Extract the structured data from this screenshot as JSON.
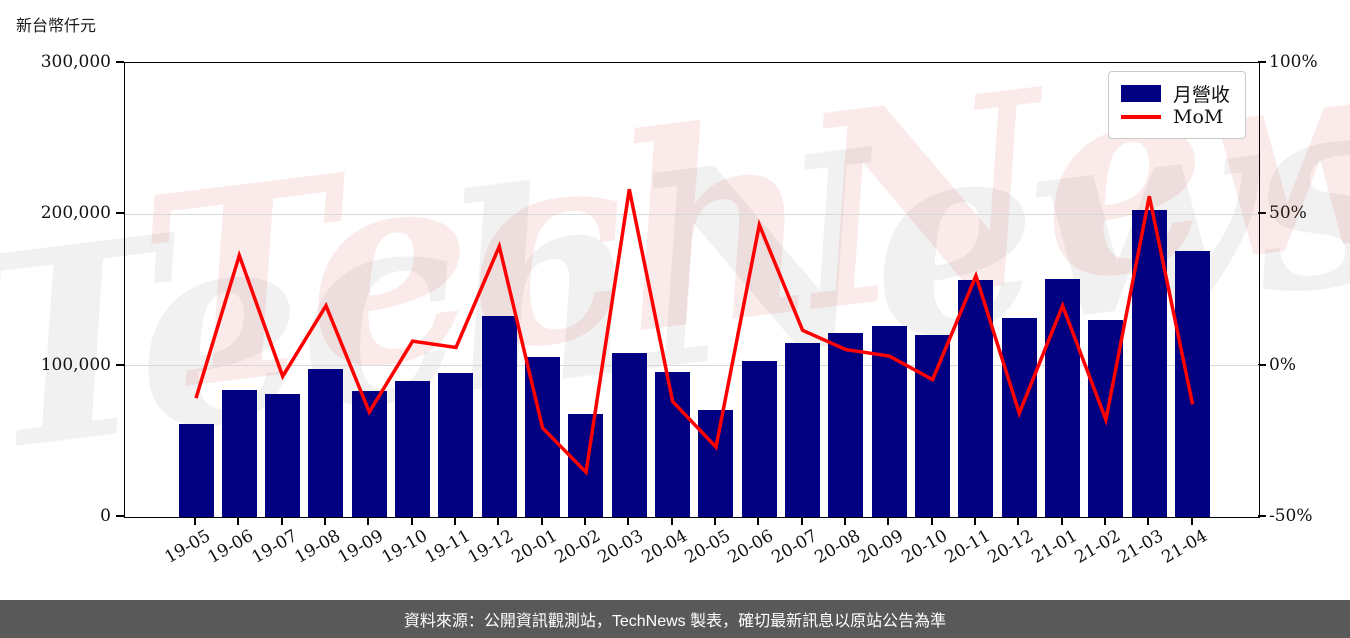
{
  "title_unit": "新台幣仟元",
  "watermark": "TechNews",
  "caption": "資料來源：公開資訊觀測站，TechNews 製表，確切最新訊息以原站公告為準",
  "legend": {
    "items": [
      {
        "label": "月營收",
        "type": "bar"
      },
      {
        "label": "MoM",
        "type": "line"
      }
    ]
  },
  "colors": {
    "bar": "#000080",
    "line": "#ff0000",
    "caption_bg": "#595959",
    "grid": "#d9d9d9",
    "axis": "#000000"
  },
  "axes": {
    "left": {
      "tick_labels": [
        "300,000",
        "200,000",
        "100,000",
        "0"
      ],
      "tick_values": [
        300000,
        200000,
        100000,
        0
      ]
    },
    "right": {
      "tick_labels": [
        "100%",
        "50%",
        "0%",
        "-50%"
      ],
      "tick_values": [
        100,
        50,
        0,
        -50
      ]
    }
  },
  "chart_data": {
    "type": "bar",
    "title": "",
    "ylabel_left": "新台幣仟元",
    "ylabel_right": "%",
    "left_axis_range": [
      0,
      300000
    ],
    "right_axis_range": [
      -50,
      100
    ],
    "gridline_values_left": [
      200000,
      100000
    ],
    "legend_position": "top-right",
    "categories": [
      "19-05",
      "19-06",
      "19-07",
      "19-08",
      "19-09",
      "19-10",
      "19-11",
      "19-12",
      "20-01",
      "20-02",
      "20-03",
      "20-04",
      "20-05",
      "20-06",
      "20-07",
      "20-08",
      "20-09",
      "20-10",
      "20-11",
      "20-12",
      "21-01",
      "21-02",
      "21-03",
      "21-04"
    ],
    "series": [
      {
        "name": "月營收",
        "type": "bar",
        "yaxis": "left",
        "unit": "新台幣仟元",
        "values": [
          61500,
          84000,
          81300,
          97600,
          83200,
          89800,
          95400,
          132800,
          106000,
          68400,
          108500,
          95800,
          70400,
          103100,
          114800,
          121800,
          126200,
          120500,
          156400,
          131300,
          157100,
          130000,
          202700,
          175800
        ]
      },
      {
        "name": "MoM",
        "type": "line",
        "yaxis": "right",
        "unit": "%",
        "values": [
          -10.7,
          36.4,
          -3.5,
          19.8,
          -15.3,
          8.1,
          6.0,
          39.4,
          -20.6,
          -35.2,
          58.3,
          -11.8,
          -26.9,
          46.5,
          11.7,
          5.3,
          3.2,
          -4.6,
          29.7,
          -15.7,
          19.8,
          -17.9,
          56.0,
          -12.8
        ]
      }
    ]
  }
}
